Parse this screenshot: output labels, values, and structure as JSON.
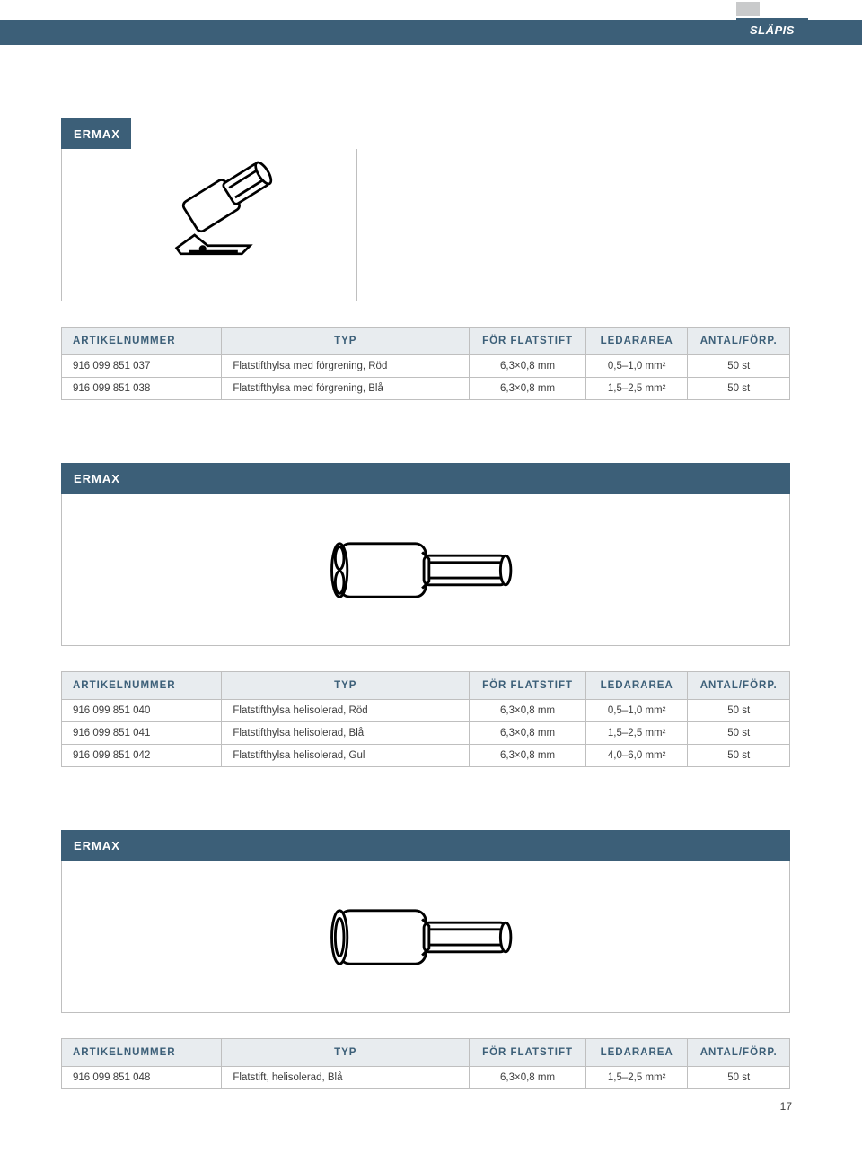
{
  "brand_logo_text": "SLÄPIS",
  "page_number": "17",
  "section_label": "ERMAX",
  "tables": {
    "t1": {
      "headers": [
        "ARTIKELNUMMER",
        "TYP",
        "FÖR FLATSTIFT",
        "LEDARAREA",
        "ANTAL/FÖRP."
      ],
      "rows": [
        [
          "916 099 851 037",
          "Flatstifthylsa med förgrening, Röd",
          "6,3×0,8 mm",
          "0,5–1,0 mm²",
          "50 st"
        ],
        [
          "916 099 851 038",
          "Flatstifthylsa med förgrening, Blå",
          "6,3×0,8 mm",
          "1,5–2,5 mm²",
          "50 st"
        ]
      ]
    },
    "t2": {
      "headers": [
        "ARTIKELNUMMER",
        "TYP",
        "FÖR FLATSTIFT",
        "LEDARAREA",
        "ANTAL/FÖRP."
      ],
      "rows": [
        [
          "916 099 851 040",
          "Flatstifthylsa helisolerad, Röd",
          "6,3×0,8 mm",
          "0,5–1,0 mm²",
          "50 st"
        ],
        [
          "916 099 851 041",
          "Flatstifthylsa helisolerad, Blå",
          "6,3×0,8 mm",
          "1,5–2,5 mm²",
          "50 st"
        ],
        [
          "916 099 851 042",
          "Flatstifthylsa helisolerad, Gul",
          "6,3×0,8 mm",
          "4,0–6,0 mm²",
          "50 st"
        ]
      ]
    },
    "t3": {
      "headers": [
        "ARTIKELNUMMER",
        "TYP",
        "FÖR FLATSTIFT",
        "LEDARAREA",
        "ANTAL/FÖRP."
      ],
      "rows": [
        [
          "916 099 851 048",
          "Flatstift, helisolerad, Blå",
          "6,3×0,8 mm",
          "1,5–2,5 mm²",
          "50 st"
        ]
      ]
    }
  },
  "colors": {
    "brand_blue": "#3c5f78",
    "header_bg": "#e8ecef",
    "border": "#bfbfbf",
    "text": "#3d3d3d"
  }
}
